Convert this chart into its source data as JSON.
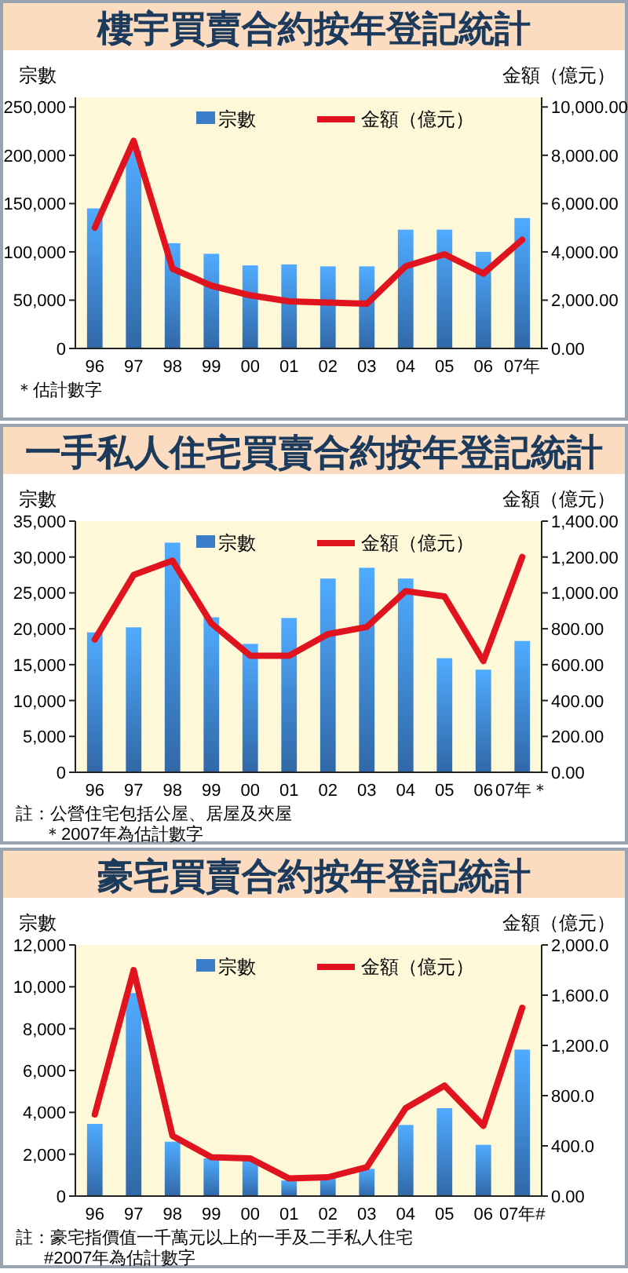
{
  "chart_data": [
    {
      "type": "bar",
      "title": "樓宇買賣合約按年登記統計",
      "ylabel": "宗數",
      "y2label": "金額（億元）",
      "categories": [
        "96",
        "97",
        "98",
        "99",
        "00",
        "01",
        "02",
        "03",
        "04",
        "05",
        "06",
        "07年"
      ],
      "series": [
        {
          "name": "宗數",
          "color": "#3a7cc8",
          "values": [
            145000,
            205000,
            109000,
            98000,
            86000,
            87000,
            85000,
            85000,
            123000,
            123000,
            100000,
            135000
          ]
        },
        {
          "name": "金額（億元）",
          "type": "line",
          "axis": "y2",
          "color": "#e0141e",
          "values": [
            5000,
            8600,
            3300,
            2600,
            2200,
            1950,
            1900,
            1850,
            3400,
            3900,
            3100,
            4500
          ]
        }
      ],
      "ylim": [
        0,
        260000
      ],
      "yticks": [
        {
          "value": 0,
          "label": "0"
        },
        {
          "value": 50000,
          "label": "50,000"
        },
        {
          "value": 100000,
          "label": "100,000"
        },
        {
          "value": 150000,
          "label": "150,000"
        },
        {
          "value": 200000,
          "label": "200,000"
        },
        {
          "value": 250000,
          "label": "250,000"
        }
      ],
      "y2lim": [
        0,
        10400
      ],
      "y2ticks": [
        {
          "value": 0,
          "label": "0.00"
        },
        {
          "value": 2000,
          "label": "2,000.00"
        },
        {
          "value": 4000,
          "label": "4,000.00"
        },
        {
          "value": 6000,
          "label": "6,000.00"
        },
        {
          "value": 8000,
          "label": "8,000.00"
        },
        {
          "value": 10000,
          "label": "10,000.00"
        }
      ],
      "legend": "top right",
      "grid": false,
      "annotations": [
        "＊估計數字"
      ]
    },
    {
      "type": "bar",
      "title": "一手私人住宅買賣合約按年登記統計",
      "ylabel": "宗數",
      "y2label": "金額（億元）",
      "categories": [
        "96",
        "97",
        "98",
        "99",
        "00",
        "01",
        "02",
        "03",
        "04",
        "05",
        "06",
        "07年＊"
      ],
      "series": [
        {
          "name": "宗數",
          "color": "#3a7cc8",
          "values": [
            19500,
            20200,
            32000,
            21600,
            17900,
            21500,
            27000,
            28500,
            27000,
            15900,
            14300,
            18300
          ]
        },
        {
          "name": "金額（億元）",
          "type": "line",
          "axis": "y2",
          "color": "#e0141e",
          "values": [
            740,
            1100,
            1180,
            830,
            650,
            650,
            770,
            810,
            1010,
            980,
            620,
            1200
          ]
        }
      ],
      "ylim": [
        0,
        35000
      ],
      "yticks": [
        {
          "value": 0,
          "label": "0"
        },
        {
          "value": 5000,
          "label": "5,000"
        },
        {
          "value": 10000,
          "label": "10,000"
        },
        {
          "value": 15000,
          "label": "15,000"
        },
        {
          "value": 20000,
          "label": "20,000"
        },
        {
          "value": 25000,
          "label": "25,000"
        },
        {
          "value": 30000,
          "label": "30,000"
        },
        {
          "value": 35000,
          "label": "35,000"
        }
      ],
      "y2lim": [
        0,
        1400
      ],
      "y2ticks": [
        {
          "value": 0,
          "label": "0.00"
        },
        {
          "value": 200,
          "label": "200.00"
        },
        {
          "value": 400,
          "label": "400.00"
        },
        {
          "value": 600,
          "label": "600.00"
        },
        {
          "value": 800,
          "label": "800.00"
        },
        {
          "value": 1000,
          "label": "1,000.00"
        },
        {
          "value": 1200,
          "label": "1,200.00"
        },
        {
          "value": 1400,
          "label": "1,400.00"
        }
      ],
      "legend": "top right",
      "grid": false,
      "annotations": [
        "註：公營住宅包括公屋、居屋及夾屋",
        "＊2007年為估計數字"
      ]
    },
    {
      "type": "bar",
      "title": "豪宅買賣合約按年登記統計",
      "ylabel": "宗數",
      "y2label": "金額（億元）",
      "categories": [
        "96",
        "97",
        "98",
        "99",
        "00",
        "01",
        "02",
        "03",
        "04",
        "05",
        "06",
        "07年#"
      ],
      "series": [
        {
          "name": "宗數",
          "color": "#3a7cc8",
          "values": [
            3450,
            9700,
            2600,
            1800,
            1700,
            750,
            1000,
            1300,
            3400,
            4200,
            2450,
            7000
          ]
        },
        {
          "name": "金額（億元）",
          "type": "line",
          "axis": "y2",
          "color": "#e0141e",
          "values": [
            650,
            1800,
            480,
            310,
            300,
            140,
            150,
            230,
            700,
            880,
            560,
            1500
          ]
        }
      ],
      "ylim": [
        0,
        12000
      ],
      "yticks": [
        {
          "value": 0,
          "label": "0"
        },
        {
          "value": 2000,
          "label": "2,000"
        },
        {
          "value": 4000,
          "label": "4,000"
        },
        {
          "value": 6000,
          "label": "6,000"
        },
        {
          "value": 8000,
          "label": "8,000"
        },
        {
          "value": 10000,
          "label": "10,000"
        },
        {
          "value": 12000,
          "label": "12,000"
        }
      ],
      "y2lim": [
        0,
        2000
      ],
      "y2ticks": [
        {
          "value": 0,
          "label": "0.00"
        },
        {
          "value": 400,
          "label": "400.0"
        },
        {
          "value": 800,
          "label": "800.0"
        },
        {
          "value": 1200,
          "label": "1,200.0"
        },
        {
          "value": 1600,
          "label": "1,600.0"
        },
        {
          "value": 2000,
          "label": "2,000.0"
        }
      ],
      "legend": "top right",
      "grid": false,
      "annotations": [
        "註：豪宅指價值一千萬元以上的一手及二手私人住宅",
        "#2007年為估計數字"
      ]
    }
  ]
}
